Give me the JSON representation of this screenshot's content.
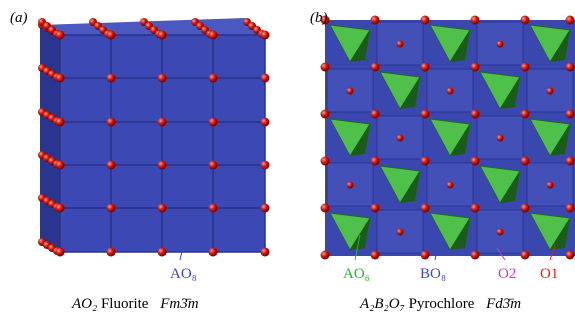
{
  "panels": [
    {
      "label": "(a)",
      "annotations": [
        {
          "text": "AO₈"
        }
      ],
      "caption": {
        "formula": "AO₂",
        "name": "Fluorite",
        "space_group": "Fm3̄m"
      }
    },
    {
      "label": "(b)",
      "annotations": [
        {
          "text": "AO₆"
        },
        {
          "text": "BO₈"
        },
        {
          "text": "O2"
        },
        {
          "text": "O1"
        }
      ],
      "caption": {
        "formula": "A₂B₂O₇",
        "name": "Pyrochlore",
        "space_group": "Fd3̄m"
      }
    }
  ]
}
